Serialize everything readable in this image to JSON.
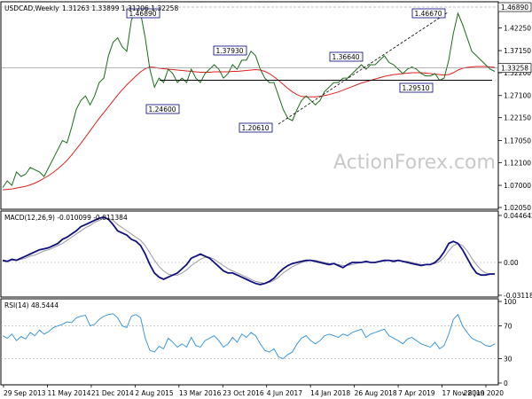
{
  "chart_data": {
    "type": "line",
    "symbol": "USDCAD,Weekly",
    "ohlc": "1.31263 1.33899 1.31206 1.32258",
    "watermark": "ActionForex.com",
    "x_labels": [
      "29 Sep 2013",
      "11 May 2014",
      "21 Dec 2014",
      "2 Aug 2015",
      "13 Mar 2016",
      "23 Oct 2016",
      "4 Jun 2017",
      "14 Jan 2018",
      "26 Aug 2018",
      "7 Apr 2019",
      "17 Nov 2019",
      "28 Jun 2020"
    ],
    "price_panel": {
      "ylim": [
        1.0205,
        1.4689
      ],
      "ticks": [
        1.0205,
        1.07,
        1.121,
        1.1705,
        1.2215,
        1.271,
        1.322,
        1.3715,
        1.4225
      ],
      "tick_labels": [
        "1.02050",
        "1.07000",
        "1.12100",
        "1.17050",
        "1.22150",
        "1.27100",
        "1.32200",
        "1.37150",
        "1.42250"
      ],
      "top_level": {
        "value": 1.4689,
        "label": "1.46890"
      },
      "current_level": {
        "value": 1.3326,
        "label": "1.33258"
      },
      "support_level": 1.3051,
      "close": [
        1.065,
        1.08,
        1.07,
        1.1,
        1.09,
        1.095,
        1.11,
        1.105,
        1.1,
        1.09,
        1.11,
        1.13,
        1.15,
        1.17,
        1.165,
        1.2,
        1.24,
        1.26,
        1.27,
        1.25,
        1.27,
        1.3,
        1.31,
        1.36,
        1.39,
        1.4,
        1.38,
        1.37,
        1.44,
        1.46,
        1.455,
        1.4,
        1.33,
        1.29,
        1.31,
        1.3,
        1.33,
        1.32,
        1.3,
        1.31,
        1.3,
        1.33,
        1.31,
        1.3,
        1.32,
        1.33,
        1.34,
        1.33,
        1.31,
        1.32,
        1.34,
        1.33,
        1.35,
        1.35,
        1.37,
        1.36,
        1.33,
        1.31,
        1.3,
        1.3,
        1.27,
        1.24,
        1.22,
        1.215,
        1.24,
        1.26,
        1.27,
        1.26,
        1.25,
        1.26,
        1.28,
        1.29,
        1.3,
        1.3,
        1.31,
        1.31,
        1.32,
        1.33,
        1.34,
        1.33,
        1.34,
        1.34,
        1.35,
        1.36,
        1.345,
        1.34,
        1.33,
        1.32,
        1.33,
        1.335,
        1.33,
        1.32,
        1.315,
        1.315,
        1.32,
        1.305,
        1.31,
        1.35,
        1.41,
        1.455,
        1.43,
        1.4,
        1.37,
        1.36,
        1.35,
        1.34,
        1.33,
        1.325
      ],
      "ma": [
        1.06,
        1.061,
        1.062,
        1.064,
        1.066,
        1.068,
        1.071,
        1.075,
        1.08,
        1.086,
        1.092,
        1.099,
        1.107,
        1.116,
        1.126,
        1.138,
        1.151,
        1.164,
        1.178,
        1.192,
        1.206,
        1.22,
        1.233,
        1.246,
        1.259,
        1.272,
        1.284,
        1.295,
        1.305,
        1.315,
        1.324,
        1.331,
        1.335,
        1.334,
        1.332,
        1.331,
        1.33,
        1.329,
        1.328,
        1.327,
        1.326,
        1.325,
        1.324,
        1.323,
        1.323,
        1.323,
        1.324,
        1.324,
        1.324,
        1.324,
        1.325,
        1.325,
        1.326,
        1.327,
        1.328,
        1.329,
        1.328,
        1.325,
        1.32,
        1.313,
        1.305,
        1.296,
        1.287,
        1.279,
        1.273,
        1.269,
        1.268,
        1.268,
        1.268,
        1.269,
        1.271,
        1.273,
        1.276,
        1.279,
        1.283,
        1.287,
        1.291,
        1.295,
        1.299,
        1.302,
        1.305,
        1.308,
        1.311,
        1.314,
        1.316,
        1.318,
        1.319,
        1.32,
        1.321,
        1.322,
        1.322,
        1.322,
        1.321,
        1.32,
        1.319,
        1.318,
        1.317,
        1.318,
        1.322,
        1.328,
        1.332,
        1.334,
        1.335,
        1.336,
        1.336,
        1.336,
        1.335,
        1.334
      ],
      "annotations": [
        {
          "label": "1.46890",
          "value": 1.4689
        },
        {
          "label": "1.37930",
          "value": 1.3793
        },
        {
          "label": "1.24600",
          "value": 1.246
        },
        {
          "label": "1.20610",
          "value": 1.2061
        },
        {
          "label": "1.36640",
          "value": 1.3664
        },
        {
          "label": "1.29510",
          "value": 1.2951
        },
        {
          "label": "1.46670",
          "value": 1.4667
        }
      ]
    },
    "macd_panel": {
      "title": "MACD(12,26,9) -0.010099 -0.011384",
      "ylim": [
        -0.031183,
        0.044642
      ],
      "tick_labels": [
        "0.044642",
        "0.00",
        "-0.031183"
      ],
      "ticks": [
        0.044642,
        0.0,
        -0.031183
      ],
      "macd": [
        0.002,
        0.001,
        0.003,
        0.002,
        0.004,
        0.006,
        0.008,
        0.01,
        0.012,
        0.013,
        0.014,
        0.016,
        0.018,
        0.022,
        0.024,
        0.027,
        0.03,
        0.034,
        0.036,
        0.038,
        0.04,
        0.042,
        0.043,
        0.041,
        0.036,
        0.03,
        0.028,
        0.026,
        0.022,
        0.02,
        0.016,
        0.008,
        -0.002,
        -0.01,
        -0.014,
        -0.016,
        -0.014,
        -0.012,
        -0.01,
        -0.006,
        -0.002,
        0.004,
        0.006,
        0.008,
        0.006,
        0.004,
        0.0,
        -0.004,
        -0.008,
        -0.01,
        -0.01,
        -0.012,
        -0.014,
        -0.016,
        -0.018,
        -0.02,
        -0.021,
        -0.02,
        -0.018,
        -0.015,
        -0.01,
        -0.006,
        -0.003,
        -0.001,
        0.0,
        0.001,
        0.002,
        0.002,
        0.001,
        0.0,
        -0.001,
        -0.002,
        -0.001,
        -0.003,
        -0.005,
        -0.002,
        0.0,
        0.0,
        0.0,
        0.001,
        0.0,
        0.0,
        0.001,
        0.002,
        0.002,
        0.001,
        0.002,
        0.001,
        0.0,
        -0.001,
        -0.002,
        -0.003,
        -0.002,
        -0.002,
        0.0,
        0.004,
        0.01,
        0.018,
        0.02,
        0.018,
        0.012,
        0.004,
        -0.004,
        -0.01,
        -0.012,
        -0.012,
        -0.011,
        -0.011
      ],
      "signal": [
        0.001,
        0.001,
        0.002,
        0.002,
        0.003,
        0.004,
        0.006,
        0.007,
        0.009,
        0.011,
        0.012,
        0.014,
        0.016,
        0.018,
        0.021,
        0.024,
        0.027,
        0.03,
        0.033,
        0.035,
        0.038,
        0.04,
        0.042,
        0.042,
        0.04,
        0.036,
        0.033,
        0.03,
        0.027,
        0.024,
        0.021,
        0.016,
        0.009,
        0.002,
        -0.004,
        -0.008,
        -0.011,
        -0.012,
        -0.012,
        -0.01,
        -0.007,
        -0.003,
        0.0,
        0.003,
        0.005,
        0.005,
        0.003,
        0.0,
        -0.003,
        -0.006,
        -0.008,
        -0.01,
        -0.012,
        -0.014,
        -0.016,
        -0.018,
        -0.019,
        -0.02,
        -0.019,
        -0.017,
        -0.014,
        -0.01,
        -0.007,
        -0.004,
        -0.002,
        0.0,
        0.001,
        0.002,
        0.002,
        0.001,
        0.0,
        -0.001,
        -0.001,
        -0.002,
        -0.003,
        -0.003,
        -0.002,
        -0.001,
        0.0,
        0.0,
        0.0,
        0.0,
        0.001,
        0.001,
        0.002,
        0.002,
        0.002,
        0.001,
        0.001,
        0.0,
        -0.001,
        -0.002,
        -0.002,
        -0.002,
        -0.001,
        0.001,
        0.005,
        0.011,
        0.016,
        0.018,
        0.016,
        0.011,
        0.004,
        -0.002,
        -0.007,
        -0.01,
        -0.011,
        -0.011
      ]
    },
    "rsi_panel": {
      "title": "RSI(14) 48.5444",
      "ylim": [
        0,
        100
      ],
      "tick_labels": [
        "100",
        "70",
        "30",
        "0"
      ],
      "ticks": [
        100,
        70,
        30,
        0
      ],
      "levels": [
        70,
        30
      ],
      "values": [
        58,
        55,
        60,
        52,
        57,
        54,
        62,
        58,
        65,
        60,
        63,
        68,
        70,
        72,
        75,
        74,
        80,
        82,
        83,
        70,
        72,
        78,
        82,
        84,
        85,
        80,
        70,
        68,
        82,
        84,
        80,
        55,
        40,
        38,
        45,
        42,
        55,
        50,
        44,
        48,
        44,
        56,
        46,
        44,
        52,
        55,
        58,
        52,
        44,
        48,
        56,
        50,
        60,
        56,
        62,
        58,
        48,
        40,
        38,
        42,
        32,
        30,
        35,
        38,
        48,
        55,
        58,
        52,
        48,
        52,
        58,
        60,
        58,
        56,
        60,
        58,
        62,
        64,
        66,
        56,
        60,
        62,
        64,
        66,
        58,
        55,
        52,
        48,
        54,
        56,
        52,
        48,
        46,
        44,
        50,
        42,
        46,
        60,
        78,
        84,
        70,
        62,
        55,
        52,
        50,
        46,
        45,
        48
      ]
    }
  }
}
